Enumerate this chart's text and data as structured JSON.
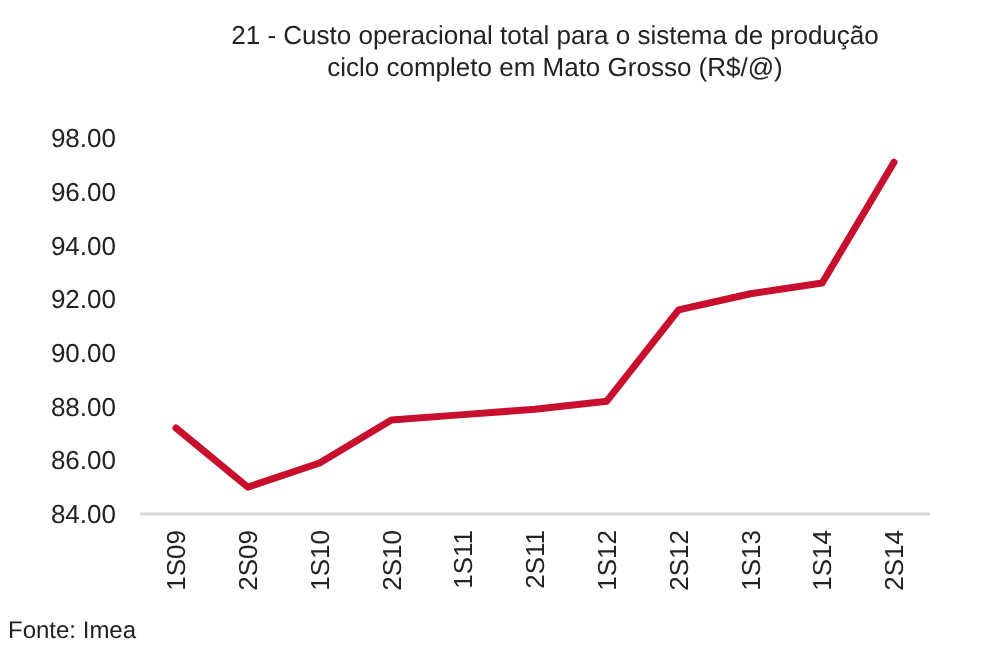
{
  "chart_data": {
    "type": "line",
    "title": "21 - Custo operacional total para o sistema de produção\nciclo completo em Mato Grosso (R$/@)",
    "categories": [
      "1S09",
      "2S09",
      "1S10",
      "2S10",
      "1S11",
      "2S11",
      "1S12",
      "2S12",
      "1S13",
      "1S14",
      "2S14"
    ],
    "series": [
      {
        "color": "#c8102e",
        "values": [
          87.2,
          85.0,
          85.9,
          87.5,
          87.7,
          87.9,
          88.2,
          91.6,
          92.2,
          92.6,
          97.1
        ]
      }
    ],
    "ylim": [
      84,
      98
    ],
    "yticks": [
      {
        "value": 84,
        "label": "84.00"
      },
      {
        "value": 86,
        "label": "86.00"
      },
      {
        "value": 88,
        "label": "88.00"
      },
      {
        "value": 90,
        "label": "90.00"
      },
      {
        "value": 92,
        "label": "92.00"
      },
      {
        "value": 94,
        "label": "94.00"
      },
      {
        "value": 96,
        "label": "96.00"
      },
      {
        "value": 98,
        "label": "98.00"
      }
    ],
    "grid": false,
    "marker": "none",
    "line_style": "solid",
    "annotations": [
      "Fonte: Imea"
    ]
  }
}
